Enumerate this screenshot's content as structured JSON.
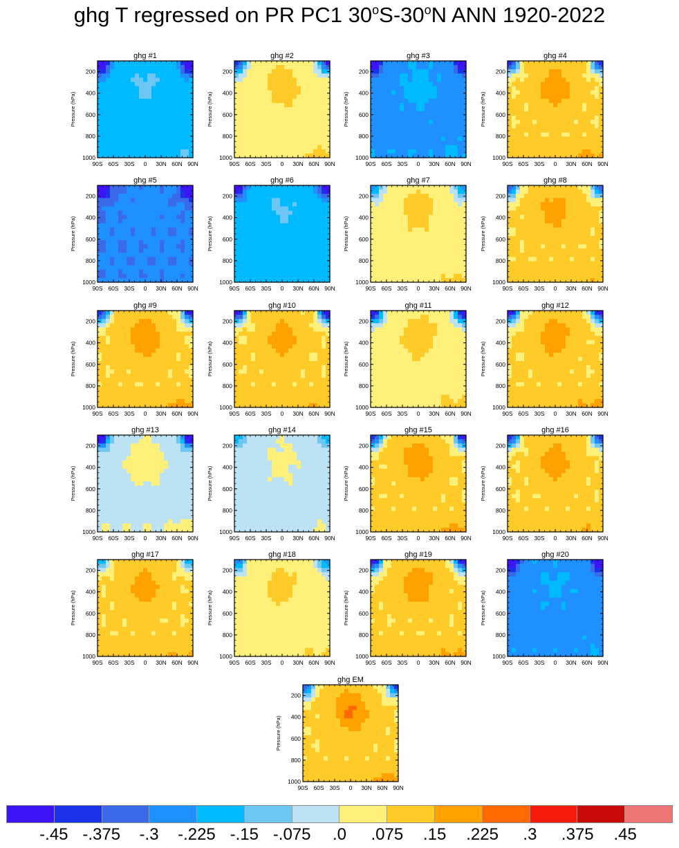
{
  "title": {
    "prefix": "ghg T regressed on PR PC1 30",
    "o1": "o",
    "mid": "S-30",
    "o2": "o",
    "suffix": "N ANN 1920-2022"
  },
  "y_axis_label": "Pressure (hPa)",
  "chart_data": [
    {
      "type": "heatmap",
      "title": "ghg #1",
      "pattern": {
        "top": 3,
        "cold": 0.95,
        "warm": 0.35
      }
    },
    {
      "type": "heatmap",
      "title": "ghg #2",
      "pattern": {
        "top": 7,
        "cold": 0.8,
        "warm": 0.65
      }
    },
    {
      "type": "heatmap",
      "title": "ghg #3",
      "pattern": {
        "top": 2,
        "cold": 0.6,
        "warm": 0.25
      }
    },
    {
      "type": "heatmap",
      "title": "ghg #4",
      "pattern": {
        "top": 8,
        "cold": 0.85,
        "warm": 0.8
      }
    },
    {
      "type": "heatmap",
      "title": "ghg #5",
      "pattern": {
        "top": 1,
        "cold": 0.7,
        "warm": 0.1
      }
    },
    {
      "type": "heatmap",
      "title": "ghg #6",
      "pattern": {
        "top": 3,
        "cold": 0.6,
        "warm": 0.3
      }
    },
    {
      "type": "heatmap",
      "title": "ghg #7",
      "pattern": {
        "top": 7,
        "cold": 0.5,
        "warm": 0.6
      }
    },
    {
      "type": "heatmap",
      "title": "ghg #8",
      "pattern": {
        "top": 8,
        "cold": 0.7,
        "warm": 0.7
      }
    },
    {
      "type": "heatmap",
      "title": "ghg #9",
      "pattern": {
        "top": 8,
        "cold": 0.9,
        "warm": 0.85
      }
    },
    {
      "type": "heatmap",
      "title": "ghg #10",
      "pattern": {
        "top": 8,
        "cold": 1.0,
        "warm": 0.7
      }
    },
    {
      "type": "heatmap",
      "title": "ghg #11",
      "pattern": {
        "top": 7,
        "cold": 0.9,
        "warm": 0.75
      }
    },
    {
      "type": "heatmap",
      "title": "ghg #12",
      "pattern": {
        "top": 8,
        "cold": 0.95,
        "warm": 0.8
      }
    },
    {
      "type": "heatmap",
      "title": "ghg #13",
      "pattern": {
        "top": 6,
        "cold": 0.95,
        "warm": 0.55
      }
    },
    {
      "type": "heatmap",
      "title": "ghg #14",
      "pattern": {
        "top": 6,
        "cold": 0.3,
        "warm": 0.3
      }
    },
    {
      "type": "heatmap",
      "title": "ghg #15",
      "pattern": {
        "top": 8,
        "cold": 0.9,
        "warm": 0.85
      }
    },
    {
      "type": "heatmap",
      "title": "ghg #16",
      "pattern": {
        "top": 8,
        "cold": 0.85,
        "warm": 0.75
      }
    },
    {
      "type": "heatmap",
      "title": "ghg #17",
      "pattern": {
        "top": 8,
        "cold": 0.5,
        "warm": 0.7
      }
    },
    {
      "type": "heatmap",
      "title": "ghg #18",
      "pattern": {
        "top": 7,
        "cold": 0.5,
        "warm": 0.55
      }
    },
    {
      "type": "heatmap",
      "title": "ghg #19",
      "pattern": {
        "top": 8,
        "cold": 0.95,
        "warm": 0.8
      }
    },
    {
      "type": "heatmap",
      "title": "ghg #20",
      "pattern": {
        "top": 2,
        "cold": 0.6,
        "warm": 0.15
      }
    },
    {
      "type": "heatmap",
      "title": "ghg EM",
      "pattern": {
        "top": 8,
        "cold": 0.75,
        "warm": 0.95
      }
    }
  ],
  "x_ticks": [
    "90S",
    "60S",
    "30S",
    "0",
    "30N",
    "60N",
    "90N"
  ],
  "y_ticks": [
    "200",
    "400",
    "600",
    "800",
    "1000"
  ],
  "colorbar": {
    "colors": [
      "#3c14f5",
      "#1a32ea",
      "#3a6ae8",
      "#1e90ff",
      "#00baff",
      "#6ec6f2",
      "#bde2f4",
      "#fff079",
      "#ffcb28",
      "#ffa200",
      "#ff6a00",
      "#f51a0a",
      "#c90a0a",
      "#ee7575"
    ],
    "labels": [
      "-.45",
      "-.375",
      "-.3",
      "-.225",
      "-.15",
      "-.075",
      ".0",
      ".075",
      ".15",
      ".225",
      ".3",
      ".375",
      ".45"
    ]
  }
}
